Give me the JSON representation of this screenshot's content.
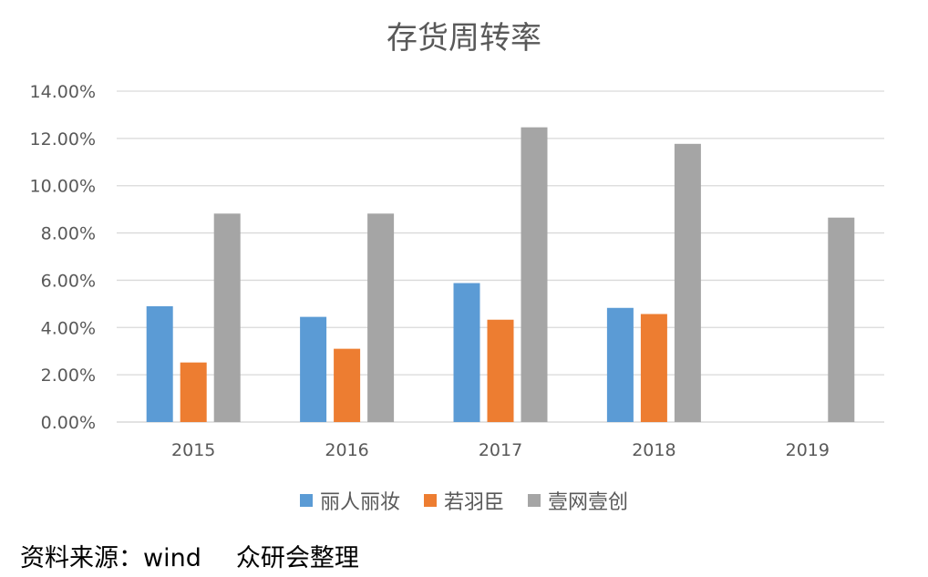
{
  "footer": {
    "source": "资料来源：wind",
    "org": "众研会整理"
  },
  "chart_data": {
    "type": "bar",
    "title": "存货周转率",
    "categories": [
      "2015",
      "2016",
      "2017",
      "2018",
      "2019"
    ],
    "series": [
      {
        "name": "丽人丽妆",
        "color": "#5B9BD5",
        "values": [
          4.9,
          4.45,
          5.88,
          4.83,
          null
        ]
      },
      {
        "name": "若羽臣",
        "color": "#ED7D31",
        "values": [
          2.52,
          3.1,
          4.33,
          4.57,
          null
        ]
      },
      {
        "name": "壹网壹创",
        "color": "#A5A5A5",
        "values": [
          8.82,
          8.82,
          12.47,
          11.77,
          8.65
        ]
      }
    ],
    "yticks": [
      "0.00%",
      "2.00%",
      "4.00%",
      "6.00%",
      "8.00%",
      "10.00%",
      "12.00%",
      "14.00%"
    ],
    "ylim": [
      0,
      14
    ],
    "grid": true,
    "legend_position": "bottom"
  }
}
